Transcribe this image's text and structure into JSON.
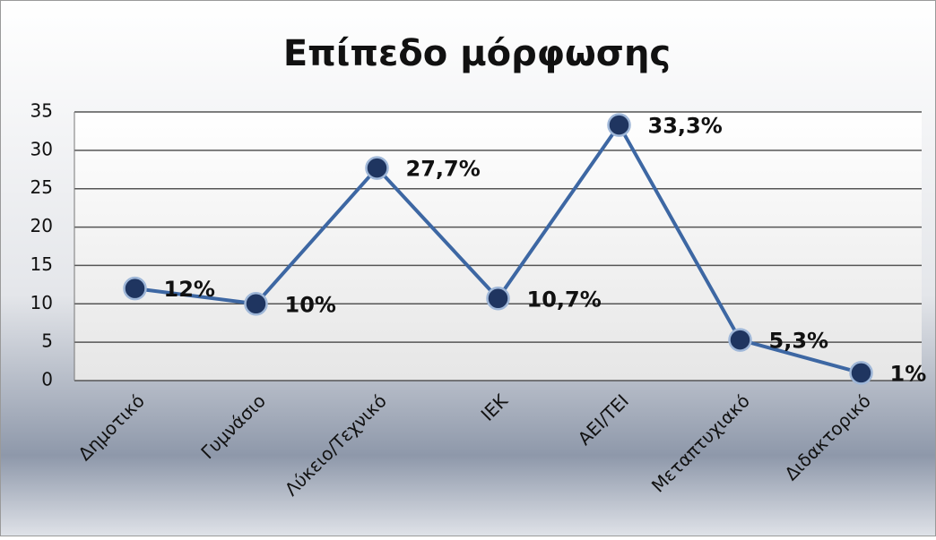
{
  "chart_data": {
    "type": "line",
    "title": "Επίπεδο μόρφωσης",
    "categories": [
      "Δημοτικό",
      "Γυμνάσιο",
      "Λύκειο/Τεχνικό",
      "ΙΕΚ",
      "ΑΕΙ/ΤΕΙ",
      "Μεταπτυχιακό",
      "Διδακτορικό"
    ],
    "series": [
      {
        "name": "Επίπεδο μόρφωσης",
        "color": "#3d67a3",
        "values": [
          12,
          10,
          27.7,
          10.7,
          33.3,
          5.3,
          1
        ],
        "value_labels": [
          "12%",
          "10%",
          "27,7%",
          "10,7%",
          "33,3%",
          "5,3%",
          "1%"
        ]
      }
    ],
    "ylim": [
      0,
      35
    ],
    "yticks": [
      0,
      5,
      10,
      15,
      20,
      25,
      30,
      35
    ],
    "grid": true
  }
}
